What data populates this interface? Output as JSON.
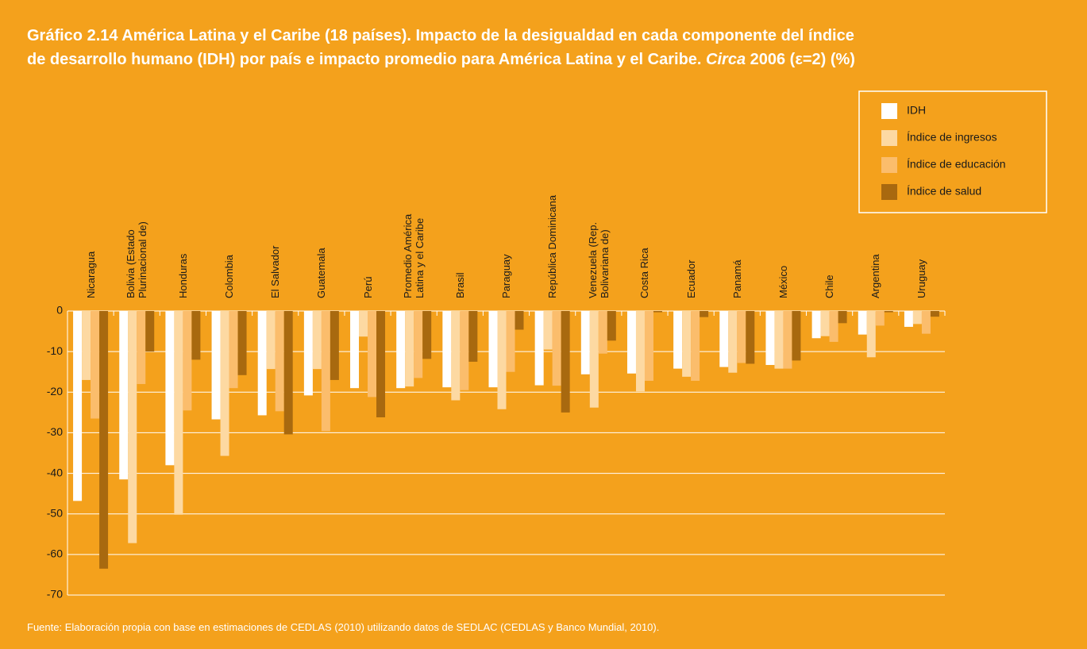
{
  "chart_data": {
    "type": "bar",
    "title": {
      "line1": "Gráfico 2.14 América Latina y el Caribe (18 países). Impacto de la desigualdad en cada componente del índice",
      "line2": "de desarrollo humano (IDH) por país e impacto promedio para América Latina y el Caribe.",
      "italic": "Circa",
      "line2_end": "2006 (ε=2) (%)"
    },
    "source": "Fuente: Elaboración propia con base en estimaciones de CEDLAS (2010) utilizando datos de SEDLAC (CEDLAS y Banco Mundial, 2010).",
    "categories": [
      "Nicaragua",
      "Bolivia (Estado\nPlurinacional de)",
      "Honduras",
      "Colombia",
      "El Salvador",
      "Guatemala",
      "Perú",
      "Promedio América\nLatina y el Caribe",
      "Brasil",
      "Paraguay",
      "República Dominicana",
      "Venezuela (Rep.\nBolivariana de)",
      "Costa Rica",
      "Ecuador",
      "Panamá",
      "México",
      "Chile",
      "Argentina",
      "Uruguay"
    ],
    "series": [
      {
        "name": "IDH",
        "color": "#ffffff",
        "values": [
          -46.8,
          -41.5,
          -38,
          -26.7,
          -25.7,
          -20.8,
          -19,
          -19,
          -18.8,
          -18.8,
          -18.3,
          -15.6,
          -15.4,
          -14.2,
          -13.8,
          -13.3,
          -6.7,
          -5.8,
          -3.9
        ]
      },
      {
        "name": "Índice de ingresos",
        "color": "#fdd9a2",
        "values": [
          -17,
          -57.2,
          -50.2,
          -35.7,
          -14.3,
          -14.3,
          -6.3,
          -18.6,
          -22,
          -24.2,
          -9.5,
          -23.8,
          -19.8,
          -16.2,
          -15.2,
          -14.2,
          -6.2,
          -11.4,
          -3.2
        ]
      },
      {
        "name": "Índice de educación",
        "color": "#fbbd6c",
        "values": [
          -26.5,
          -18,
          -24.5,
          -19,
          -24.7,
          -29.6,
          -21.2,
          -16.5,
          -19.5,
          -15,
          -18.4,
          -10.5,
          -17.2,
          -17.2,
          -12.8,
          -14.2,
          -7.6,
          -3.6,
          -5.6
        ]
      },
      {
        "name": "Índice de salud",
        "color": "#a8690f",
        "values": [
          -63.5,
          -10,
          -12,
          -15.8,
          -30.4,
          -17,
          -26.2,
          -11.8,
          -12.5,
          -4.6,
          -25,
          -7.3,
          -0.3,
          -1.5,
          -13,
          -12.2,
          -3,
          -0.3,
          -1.4
        ]
      }
    ],
    "ylim": [
      -70,
      0
    ],
    "yticks": [
      0,
      -10,
      -20,
      -30,
      -40,
      -50,
      -60,
      -70
    ],
    "grid": true,
    "legend": "top-right"
  }
}
